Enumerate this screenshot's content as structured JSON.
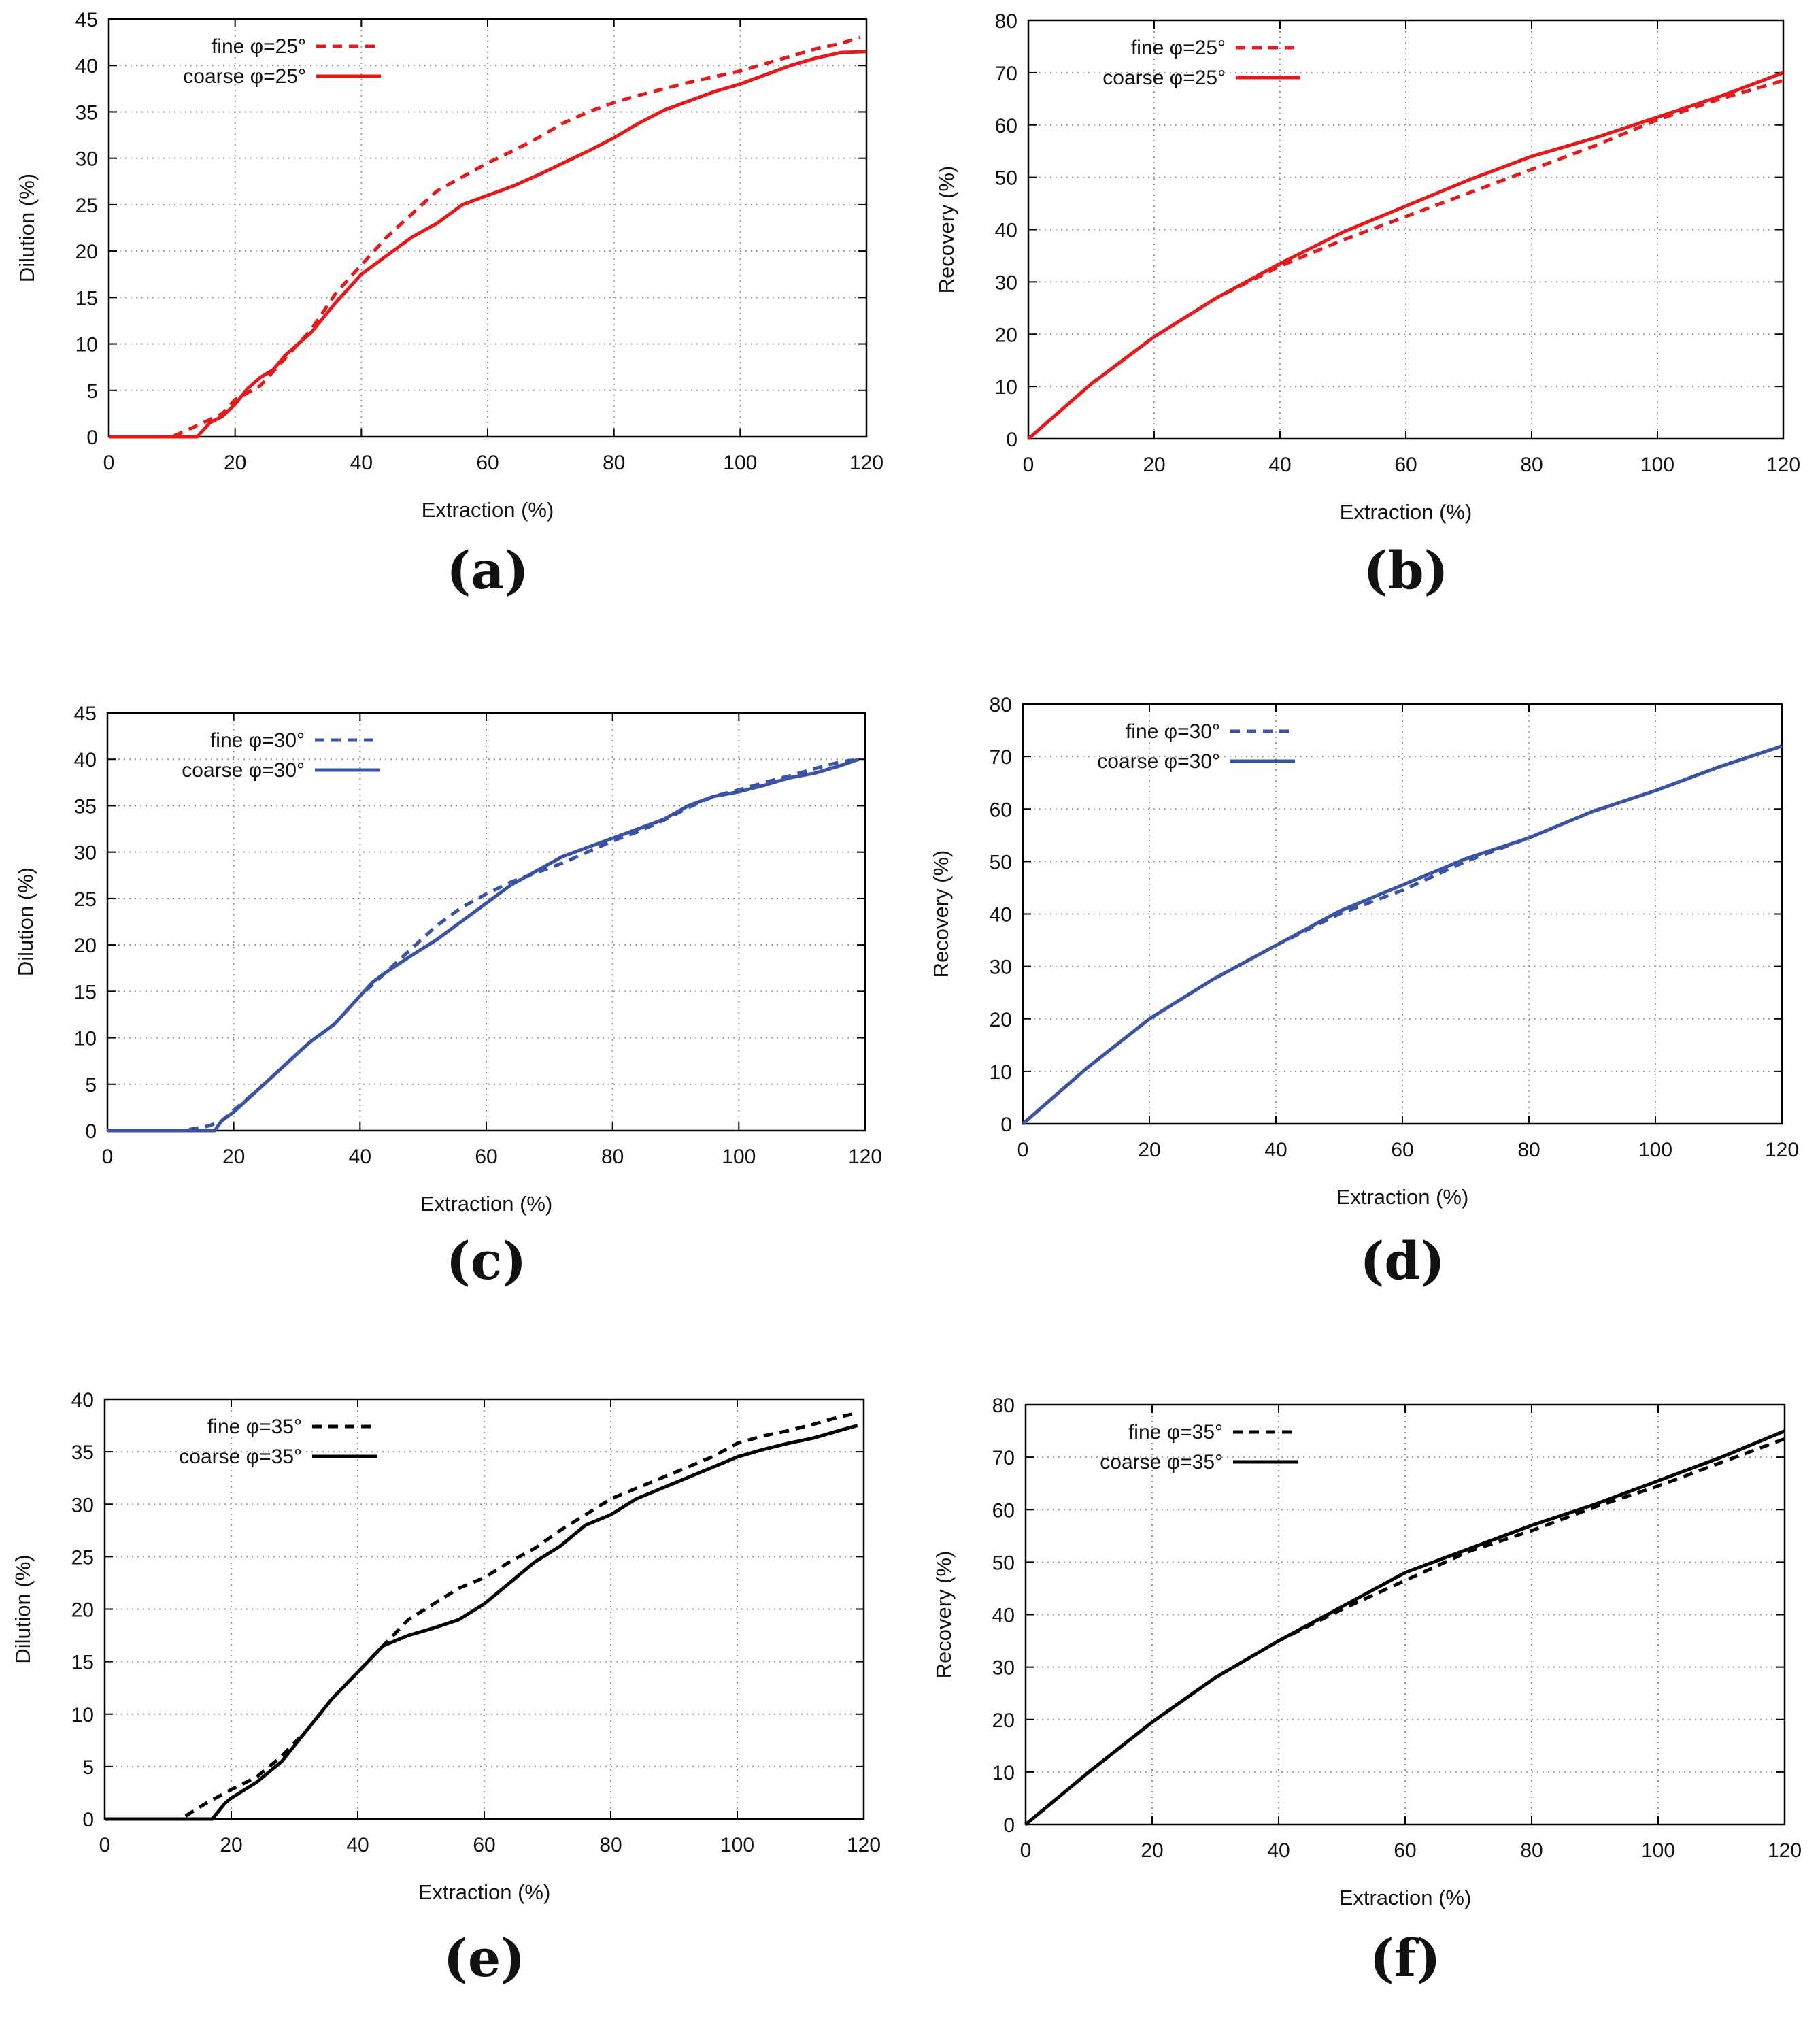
{
  "chart_data": [
    {
      "type": "line",
      "panel": "(a)",
      "color": "#e41a1c",
      "xlabel": "Extraction (%)",
      "ylabel": "Dilution (%)",
      "xlim": [
        0,
        120
      ],
      "ylim": [
        0,
        45
      ],
      "xticks": [
        0,
        20,
        40,
        60,
        80,
        100,
        120
      ],
      "yticks": [
        0,
        5,
        10,
        15,
        20,
        25,
        30,
        35,
        40,
        45
      ],
      "grid": true,
      "legend_position": "top-left",
      "series": [
        {
          "name": "fine φ=25°",
          "style": "dashed",
          "x": [
            0,
            10,
            14,
            18,
            20,
            24,
            28,
            32,
            36,
            40,
            44,
            48,
            52,
            56,
            60,
            64,
            68,
            72,
            76,
            80,
            84,
            88,
            92,
            96,
            100,
            104,
            108,
            112,
            116,
            119
          ],
          "y": [
            0,
            0,
            1.2,
            2.5,
            4,
            5.5,
            8.5,
            11.5,
            15.5,
            18.5,
            21.5,
            24,
            26.5,
            28,
            29.5,
            30.8,
            32.2,
            33.8,
            35,
            36,
            36.8,
            37.5,
            38.2,
            38.8,
            39.4,
            40.2,
            41,
            41.8,
            42.4,
            43
          ]
        },
        {
          "name": "coarse φ=25°",
          "style": "solid",
          "x": [
            0,
            14,
            16,
            18,
            20,
            22,
            24,
            26,
            28,
            32,
            36,
            40,
            44,
            48,
            52,
            56,
            60,
            64,
            68,
            72,
            76,
            80,
            84,
            88,
            92,
            96,
            100,
            104,
            108,
            112,
            116,
            120
          ],
          "y": [
            0,
            0,
            1.5,
            2.2,
            3.5,
            5.2,
            6.4,
            7.2,
            8.8,
            11.2,
            14.5,
            17.5,
            19.5,
            21.5,
            23,
            25,
            26,
            27,
            28.2,
            29.5,
            30.8,
            32.2,
            33.8,
            35.2,
            36.2,
            37.2,
            38,
            39,
            40,
            40.8,
            41.4,
            41.5
          ]
        }
      ]
    },
    {
      "type": "line",
      "panel": "(b)",
      "color": "#e41a1c",
      "xlabel": "Extraction (%)",
      "ylabel": "Recovery (%)",
      "xlim": [
        0,
        120
      ],
      "ylim": [
        0,
        80
      ],
      "xticks": [
        0,
        20,
        40,
        60,
        80,
        100,
        120
      ],
      "yticks": [
        0,
        10,
        20,
        30,
        40,
        50,
        60,
        70,
        80
      ],
      "grid": true,
      "legend_position": "top-left",
      "series": [
        {
          "name": "fine φ=25°",
          "style": "dashed",
          "x": [
            0,
            10,
            20,
            30,
            40,
            50,
            60,
            70,
            80,
            90,
            100,
            110,
            120
          ],
          "y": [
            0,
            10.5,
            19.5,
            27,
            33,
            38,
            42.5,
            47,
            51.5,
            56,
            61,
            65,
            68.5
          ]
        },
        {
          "name": "coarse φ=25°",
          "style": "solid",
          "x": [
            0,
            10,
            20,
            30,
            40,
            50,
            60,
            70,
            80,
            90,
            100,
            110,
            120
          ],
          "y": [
            0,
            10.5,
            19.5,
            27,
            33.5,
            39.5,
            44.5,
            49.5,
            54,
            57.5,
            61.5,
            65.5,
            70
          ]
        }
      ]
    },
    {
      "type": "line",
      "panel": "(c)",
      "color": "#3a53a4",
      "xlabel": "Extraction (%)",
      "ylabel": "Dilution (%)",
      "xlim": [
        0,
        120
      ],
      "ylim": [
        0,
        45
      ],
      "xticks": [
        0,
        20,
        40,
        60,
        80,
        100,
        120
      ],
      "yticks": [
        0,
        5,
        10,
        15,
        20,
        25,
        30,
        35,
        40,
        45
      ],
      "grid": true,
      "legend_position": "top-left",
      "series": [
        {
          "name": "fine φ=30°",
          "style": "dashed",
          "x": [
            0,
            12,
            16,
            18,
            20,
            24,
            28,
            32,
            36,
            40,
            44,
            48,
            52,
            56,
            60,
            64,
            68,
            72,
            76,
            80,
            84,
            88,
            92,
            96,
            100,
            104,
            108,
            112,
            116,
            119
          ],
          "y": [
            0,
            0,
            0.5,
            1,
            2.2,
            4.5,
            7,
            9.5,
            11.5,
            14.5,
            17,
            19.5,
            22,
            24,
            25.5,
            26.8,
            27.8,
            28.8,
            30,
            31.2,
            32.2,
            33.4,
            34.8,
            36,
            36.7,
            37.5,
            38.2,
            39,
            39.7,
            40
          ]
        },
        {
          "name": "coarse φ=30°",
          "style": "solid",
          "x": [
            0,
            17,
            18,
            20,
            24,
            28,
            32,
            36,
            40,
            42,
            44,
            48,
            52,
            56,
            60,
            64,
            68,
            72,
            76,
            80,
            84,
            88,
            92,
            96,
            100,
            104,
            108,
            112,
            116,
            119
          ],
          "y": [
            0,
            0,
            1,
            2,
            4.5,
            7,
            9.5,
            11.5,
            14.5,
            16,
            17,
            18.8,
            20.5,
            22.5,
            24.5,
            26.5,
            28,
            29.5,
            30.5,
            31.5,
            32.5,
            33.5,
            35,
            36,
            36.5,
            37.2,
            38,
            38.5,
            39.3,
            40
          ]
        }
      ]
    },
    {
      "type": "line",
      "panel": "(d)",
      "color": "#3a53a4",
      "xlabel": "Extraction (%)",
      "ylabel": "Recovery (%)",
      "xlim": [
        0,
        120
      ],
      "ylim": [
        0,
        80
      ],
      "xticks": [
        0,
        20,
        40,
        60,
        80,
        100,
        120
      ],
      "yticks": [
        0,
        10,
        20,
        30,
        40,
        50,
        60,
        70,
        80
      ],
      "grid": true,
      "legend_position": "top-left",
      "series": [
        {
          "name": "fine φ=30°",
          "style": "dashed",
          "x": [
            0,
            10,
            20,
            30,
            40,
            50,
            60,
            70,
            80,
            90,
            100,
            110,
            120
          ],
          "y": [
            0,
            10.5,
            20,
            27.5,
            34,
            40,
            44.5,
            50,
            54.5,
            59.5,
            63.5,
            68,
            72
          ]
        },
        {
          "name": "coarse φ=30°",
          "style": "solid",
          "x": [
            0,
            10,
            20,
            30,
            40,
            50,
            60,
            70,
            80,
            90,
            100,
            110,
            120
          ],
          "y": [
            0,
            10.5,
            20,
            27.5,
            34,
            40.5,
            45.5,
            50.5,
            54.5,
            59.5,
            63.5,
            68,
            72
          ]
        }
      ]
    },
    {
      "type": "line",
      "panel": "(e)",
      "color": "#000000",
      "xlabel": "Extraction (%)",
      "ylabel": "Dilution (%)",
      "xlim": [
        0,
        120
      ],
      "ylim": [
        0,
        40
      ],
      "xticks": [
        0,
        20,
        40,
        60,
        80,
        100,
        120
      ],
      "yticks": [
        0,
        5,
        10,
        15,
        20,
        25,
        30,
        35,
        40
      ],
      "grid": true,
      "legend_position": "top-left",
      "series": [
        {
          "name": "fine φ=35°",
          "style": "dashed",
          "x": [
            0,
            12,
            16,
            20,
            24,
            28,
            32,
            36,
            40,
            44,
            48,
            52,
            56,
            60,
            64,
            68,
            72,
            76,
            80,
            84,
            88,
            92,
            96,
            100,
            104,
            108,
            112,
            116,
            119
          ],
          "y": [
            0,
            0,
            1.5,
            2.8,
            4,
            6,
            8.5,
            11.5,
            14,
            16.5,
            19,
            20.5,
            22,
            23,
            24.5,
            25.8,
            27.5,
            29,
            30.5,
            31.5,
            32.5,
            33.5,
            34.5,
            35.8,
            36.5,
            37,
            37.6,
            38.3,
            38.7
          ]
        },
        {
          "name": "coarse φ=35°",
          "style": "solid",
          "x": [
            0,
            17,
            19,
            20,
            24,
            28,
            32,
            36,
            40,
            44,
            48,
            52,
            56,
            60,
            64,
            68,
            72,
            76,
            80,
            84,
            88,
            92,
            96,
            100,
            104,
            108,
            112,
            116,
            119
          ],
          "y": [
            0,
            0,
            1.5,
            2,
            3.5,
            5.5,
            8.5,
            11.5,
            14,
            16.5,
            17.5,
            18.2,
            19,
            20.5,
            22.5,
            24.5,
            26,
            28,
            29,
            30.5,
            31.5,
            32.5,
            33.5,
            34.5,
            35.2,
            35.8,
            36.3,
            37,
            37.5
          ]
        }
      ]
    },
    {
      "type": "line",
      "panel": "(f)",
      "color": "#000000",
      "xlabel": "Extraction (%)",
      "ylabel": "Recovery (%)",
      "xlim": [
        0,
        120
      ],
      "ylim": [
        0,
        80
      ],
      "xticks": [
        0,
        20,
        40,
        60,
        80,
        100,
        120
      ],
      "yticks": [
        0,
        10,
        20,
        30,
        40,
        50,
        60,
        70,
        80
      ],
      "grid": true,
      "legend_position": "top-left",
      "series": [
        {
          "name": "fine φ=35°",
          "style": "dashed",
          "x": [
            0,
            10,
            20,
            30,
            40,
            50,
            60,
            70,
            80,
            90,
            100,
            110,
            120
          ],
          "y": [
            0,
            10,
            19.5,
            28,
            35,
            41,
            46.5,
            52,
            56,
            60.5,
            64.5,
            69,
            73.5
          ]
        },
        {
          "name": "coarse φ=35°",
          "style": "solid",
          "x": [
            0,
            10,
            20,
            30,
            40,
            50,
            60,
            70,
            80,
            90,
            100,
            110,
            120
          ],
          "y": [
            0,
            10,
            19.5,
            28,
            35,
            41.5,
            48,
            52.5,
            57,
            61,
            65.5,
            70,
            75
          ]
        }
      ]
    }
  ]
}
